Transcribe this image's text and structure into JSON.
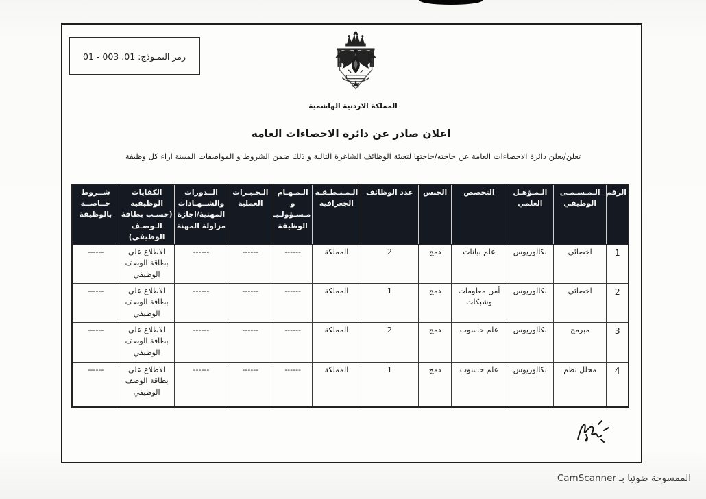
{
  "doc": {
    "form_code": "رمز النمـوذج: 01، 003 - 01",
    "kingdom_name": "المملكة الاردنية الهاشمية",
    "title": "اعلان صادر عن دائرة الاحصاءات العامة",
    "subtitle": "تعلن/يعلن دائرة الاحصاءات العامة عن حاجته/حاجتها لتعبئة الوظائف الشاغرة التالية و ذلك ضمن الشروط و المواصفات المبينة ازاء كل وظيفة",
    "footer": "الممسوحة ضوئيا بـ CamScanner"
  },
  "icons": {
    "emblem": "jordan-coat-of-arms",
    "signature": "handwritten-signature",
    "top_mark": "scanner-edge-mark"
  },
  "colors": {
    "ink": "#1c1c1c",
    "paper": "#fdfdfb",
    "header_bg": "#141922",
    "header_text": "#f4f4f2"
  },
  "table": {
    "headers": [
      "الرقم",
      "الـمـسـمـى الوظيفي",
      "الـمـؤهـل العلمي",
      "التخصص",
      "الجنس",
      "عدد الوظائف",
      "الـمـنـطـقـة الجغرافية",
      "الـمـهـام و مـسـؤولـيـات الوظيفة",
      "الـخـبـرات العملية",
      "الــدورات والشــهـادات المهنية/اجازة مزاولة المهنة",
      "الكفايات الوظيفية (حسـب بطاقة الـوصـف الوظيفي)",
      "شــروط خــاصــة بالوظيفة"
    ],
    "rows": [
      {
        "cells": [
          "1",
          "اخصائي",
          "بكالوريوس",
          "علم بيانات",
          "دمج",
          "2",
          "المملكة",
          "------",
          "------",
          "------",
          "الاطلاع على بطاقة الوصف الوظيفي",
          "------"
        ]
      },
      {
        "cells": [
          "2",
          "اخصائي",
          "بكالوريوس",
          "أمن معلومات وشبكات",
          "دمج",
          "1",
          "المملكة",
          "------",
          "------",
          "------",
          "الاطلاع على بطاقة الوصف الوظيفي",
          "------"
        ]
      },
      {
        "cells": [
          "3",
          "مبرمج",
          "بكالوريوس",
          "علم حاسوب",
          "دمج",
          "2",
          "المملكة",
          "------",
          "------",
          "------",
          "الاطلاع على بطاقة الوصف الوظيفي",
          "------"
        ]
      },
      {
        "cells": [
          "4",
          "محلل نظم",
          "بكالوريوس",
          "علم حاسوب",
          "دمج",
          "1",
          "المملكة",
          "------",
          "------",
          "------",
          "الاطلاع على بطاقة الوصف الوظيفي",
          "------"
        ]
      }
    ]
  }
}
